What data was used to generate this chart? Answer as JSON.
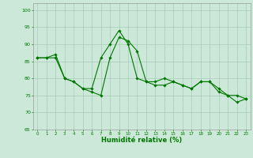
{
  "xlabel": "Humidité relative (%)",
  "ylabel": "",
  "bg_color": "#cce8d8",
  "grid_color": "#aaccbb",
  "line_color": "#007700",
  "xlim": [
    -0.5,
    23.5
  ],
  "ylim": [
    65,
    102
  ],
  "yticks": [
    65,
    70,
    75,
    80,
    85,
    90,
    95,
    100
  ],
  "xticks": [
    0,
    1,
    2,
    3,
    4,
    5,
    6,
    7,
    8,
    9,
    10,
    11,
    12,
    13,
    14,
    15,
    16,
    17,
    18,
    19,
    20,
    21,
    22,
    23
  ],
  "series": [
    [
      86,
      86,
      86,
      80,
      79,
      77,
      76,
      75,
      86,
      92,
      91,
      88,
      79,
      78,
      78,
      79,
      78,
      77,
      79,
      79,
      77,
      75,
      73,
      74
    ],
    [
      86,
      86,
      87,
      80,
      79,
      77,
      77,
      86,
      90,
      94,
      90,
      80,
      79,
      79,
      80,
      79,
      78,
      77,
      79,
      79,
      76,
      75,
      75,
      74
    ]
  ]
}
